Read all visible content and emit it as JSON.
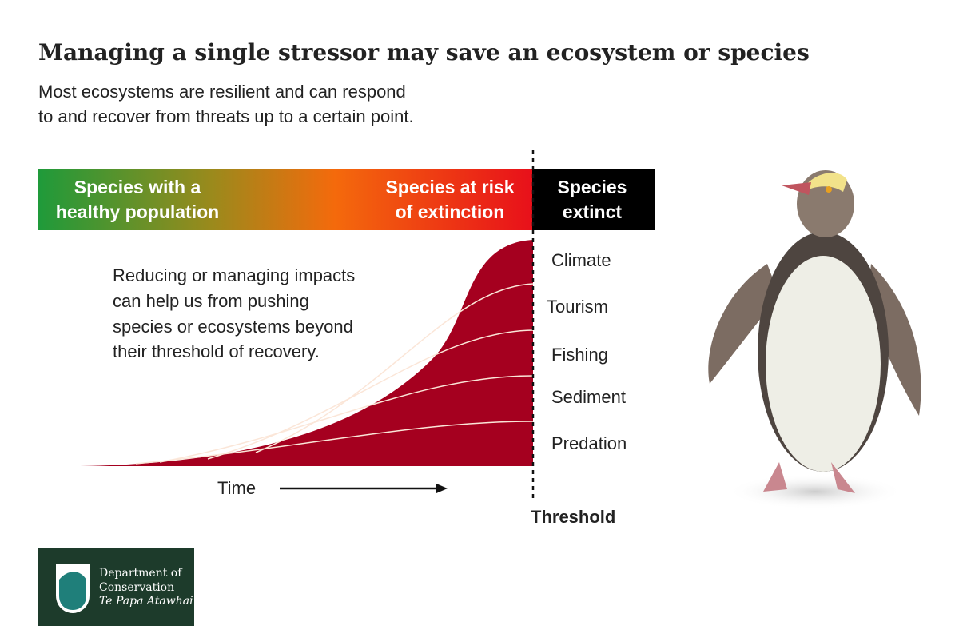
{
  "header": {
    "title": "Managing a single stressor may save an ecosystem or species",
    "subtitle": [
      "Most ecosystems are resilient and can respond",
      "to and recover from threats up to a certain point."
    ]
  },
  "stages": [
    {
      "lines": [
        "Species with a",
        "healthy population"
      ]
    },
    {
      "lines": [
        "Species at risk",
        "of extinction"
      ]
    },
    {
      "lines": [
        "Species",
        "extinct"
      ]
    }
  ],
  "body": [
    "Reducing or managing impacts",
    "can help us from pushing",
    "species or ecosystems beyond",
    "their threshold of recovery."
  ],
  "stressors": [
    "Climate",
    "Tourism",
    "Fishing",
    "Sediment",
    "Predation"
  ],
  "time_label": "Time",
  "threshold_label": "Threshold",
  "logo": {
    "lines": [
      "Department of",
      "Conservation"
    ],
    "tagline": "Te Papa Atawhai"
  }
}
